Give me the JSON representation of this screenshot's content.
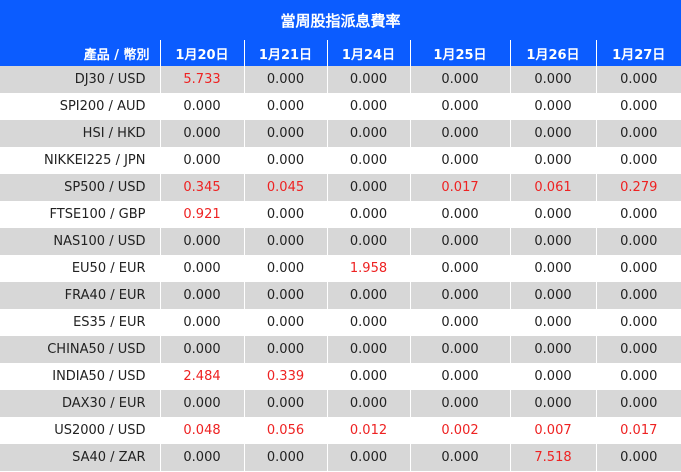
{
  "title": "當周股指派息費率",
  "columns": [
    "產品 / 幣別",
    "1月20日",
    "1月21日",
    "1月24日",
    "1月25日",
    "1月26日",
    "1月27日"
  ],
  "rows": [
    {
      "product": "DJ30 / USD",
      "values": [
        "5.733",
        "0.000",
        "0.000",
        "0.000",
        "0.000",
        "0.000"
      ]
    },
    {
      "product": "SPI200 / AUD",
      "values": [
        "0.000",
        "0.000",
        "0.000",
        "0.000",
        "0.000",
        "0.000"
      ]
    },
    {
      "product": "HSI / HKD",
      "values": [
        "0.000",
        "0.000",
        "0.000",
        "0.000",
        "0.000",
        "0.000"
      ]
    },
    {
      "product": "NIKKEI225 / JPN",
      "values": [
        "0.000",
        "0.000",
        "0.000",
        "0.000",
        "0.000",
        "0.000"
      ]
    },
    {
      "product": "SP500 / USD",
      "values": [
        "0.345",
        "0.045",
        "0.000",
        "0.017",
        "0.061",
        "0.279"
      ]
    },
    {
      "product": "FTSE100 / GBP",
      "values": [
        "0.921",
        "0.000",
        "0.000",
        "0.000",
        "0.000",
        "0.000"
      ]
    },
    {
      "product": "NAS100 / USD",
      "values": [
        "0.000",
        "0.000",
        "0.000",
        "0.000",
        "0.000",
        "0.000"
      ]
    },
    {
      "product": "EU50 / EUR",
      "values": [
        "0.000",
        "0.000",
        "1.958",
        "0.000",
        "0.000",
        "0.000"
      ]
    },
    {
      "product": "FRA40 / EUR",
      "values": [
        "0.000",
        "0.000",
        "0.000",
        "0.000",
        "0.000",
        "0.000"
      ]
    },
    {
      "product": "ES35 / EUR",
      "values": [
        "0.000",
        "0.000",
        "0.000",
        "0.000",
        "0.000",
        "0.000"
      ]
    },
    {
      "product": "CHINA50 / USD",
      "values": [
        "0.000",
        "0.000",
        "0.000",
        "0.000",
        "0.000",
        "0.000"
      ]
    },
    {
      "product": "INDIA50 / USD",
      "values": [
        "2.484",
        "0.339",
        "0.000",
        "0.000",
        "0.000",
        "0.000"
      ]
    },
    {
      "product": "DAX30 / EUR",
      "values": [
        "0.000",
        "0.000",
        "0.000",
        "0.000",
        "0.000",
        "0.000"
      ]
    },
    {
      "product": "US2000 / USD",
      "values": [
        "0.048",
        "0.056",
        "0.012",
        "0.002",
        "0.007",
        "0.017"
      ]
    },
    {
      "product": "SA40 / ZAR",
      "values": [
        "0.000",
        "0.000",
        "0.000",
        "0.000",
        "7.518",
        "0.000"
      ]
    }
  ],
  "colors": {
    "header_background": "#0b5cff",
    "header_text": "#ffffff",
    "row_shaded": "#d7d7d7",
    "row_plain": "#ffffff",
    "value_nonzero": "#ee2222",
    "value_zero": "#222222"
  }
}
